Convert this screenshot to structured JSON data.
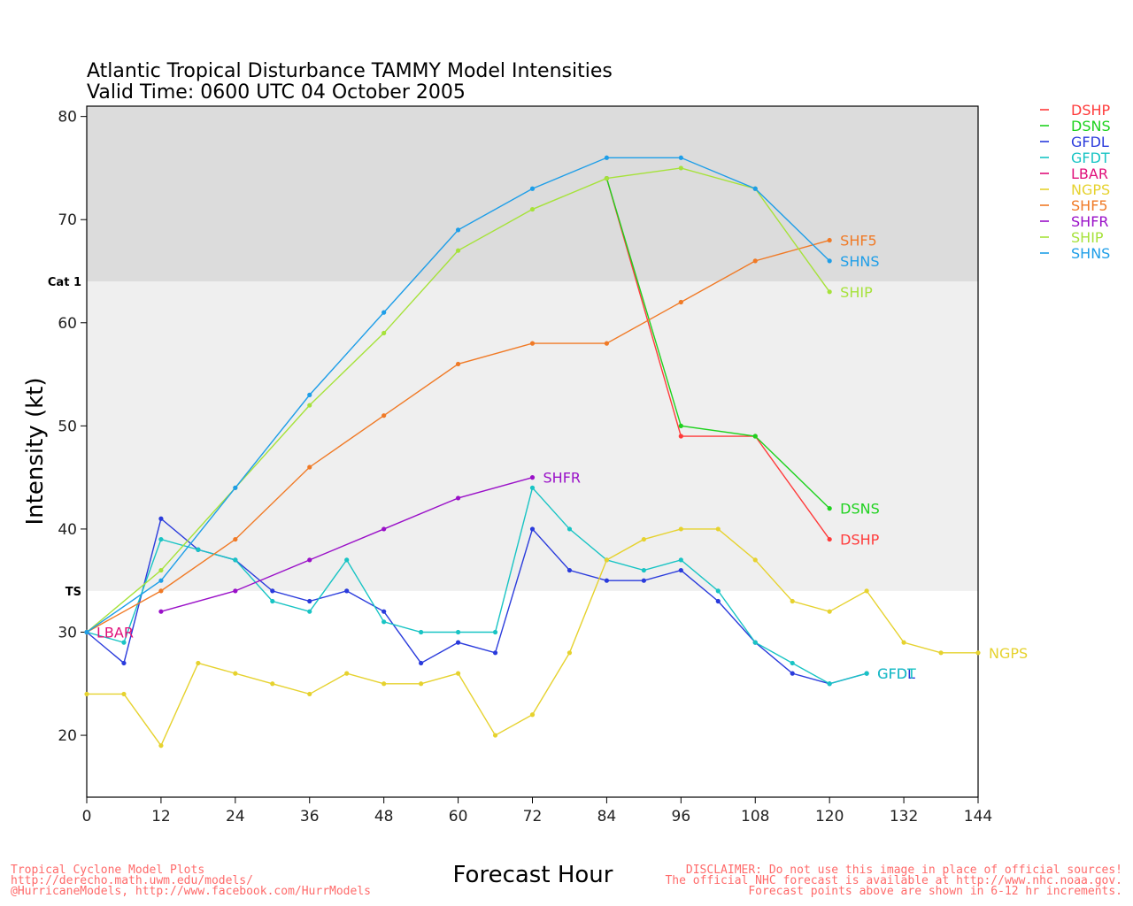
{
  "chart_data": {
    "type": "line",
    "title": "Atlantic Tropical Disturbance TAMMY Model Intensities",
    "subtitle": "Valid Time: 0600 UTC 04 October 2005",
    "xlabel": "Forecast Hour",
    "ylabel": "Intensity (kt)",
    "xlim": [
      0,
      144
    ],
    "ylim": [
      14,
      81
    ],
    "xticks": [
      0,
      12,
      24,
      36,
      48,
      60,
      72,
      84,
      96,
      108,
      120,
      132,
      144
    ],
    "yticks": [
      20,
      30,
      40,
      50,
      60,
      70,
      80
    ],
    "bands": [
      {
        "label": "TS",
        "from": 34,
        "to": 64,
        "color": "#efefef"
      },
      {
        "label": "Cat 1",
        "from": 64,
        "to": 81,
        "color": "#dcdcdc"
      }
    ],
    "legend_position": "top-right outside",
    "series": [
      {
        "name": "DSHP",
        "color": "#ff3b3b",
        "label": "DSHP",
        "x": [
          84,
          96,
          108,
          120
        ],
        "y": [
          74,
          49,
          49,
          39
        ]
      },
      {
        "name": "DSNS",
        "color": "#1ed21e",
        "label": "DSNS",
        "x": [
          84,
          96,
          108,
          120
        ],
        "y": [
          74,
          50,
          49,
          42
        ]
      },
      {
        "name": "GFDL",
        "color": "#2a3bdc",
        "label": "GFDL",
        "x": [
          0,
          6,
          12,
          18,
          24,
          30,
          36,
          42,
          48,
          54,
          60,
          66,
          72,
          78,
          84,
          90,
          96,
          102,
          108,
          114,
          120,
          126
        ],
        "y": [
          30,
          27,
          41,
          38,
          37,
          34,
          33,
          34,
          32,
          27,
          29,
          28,
          40,
          36,
          35,
          35,
          36,
          33,
          29,
          26,
          25,
          26
        ]
      },
      {
        "name": "GFDT",
        "color": "#18c4c4",
        "label": "GFDT",
        "x": [
          0,
          6,
          12,
          18,
          24,
          30,
          36,
          42,
          48,
          54,
          60,
          66,
          72,
          78,
          84,
          90,
          96,
          102,
          108,
          114,
          120,
          126
        ],
        "y": [
          30,
          29,
          39,
          38,
          37,
          33,
          32,
          37,
          31,
          30,
          30,
          30,
          44,
          40,
          37,
          36,
          37,
          34,
          29,
          27,
          25,
          26
        ]
      },
      {
        "name": "LBAR",
        "color": "#e0107a",
        "label": "LBAR",
        "x": [
          0
        ],
        "y": [
          30
        ]
      },
      {
        "name": "NGPS",
        "color": "#e6d22e",
        "label": "NGPS",
        "x": [
          0,
          6,
          12,
          18,
          24,
          30,
          36,
          42,
          48,
          54,
          60,
          66,
          72,
          78,
          84,
          90,
          96,
          102,
          108,
          114,
          120,
          126,
          132,
          138,
          144
        ],
        "y": [
          24,
          24,
          19,
          27,
          26,
          25,
          24,
          26,
          25,
          25,
          26,
          20,
          22,
          28,
          37,
          39,
          40,
          40,
          37,
          33,
          32,
          34,
          29,
          28,
          28
        ]
      },
      {
        "name": "SHF5",
        "color": "#f07a26",
        "label": "SHF5",
        "x": [
          0,
          12,
          24,
          36,
          48,
          60,
          72,
          84,
          96,
          108,
          120
        ],
        "y": [
          30,
          34,
          39,
          46,
          51,
          56,
          58,
          58,
          62,
          66,
          68
        ]
      },
      {
        "name": "SHFR",
        "color": "#9a10c8",
        "label": "SHFR",
        "x": [
          12,
          24,
          36,
          48,
          60,
          72
        ],
        "y": [
          32,
          34,
          37,
          40,
          43,
          45
        ]
      },
      {
        "name": "SHIP",
        "color": "#a6e23a",
        "label": "SHIP",
        "x": [
          0,
          12,
          24,
          36,
          48,
          60,
          72,
          84,
          96,
          108,
          120
        ],
        "y": [
          30,
          36,
          44,
          52,
          59,
          67,
          71,
          74,
          75,
          73,
          63
        ]
      },
      {
        "name": "SHNS",
        "color": "#1e9ee8",
        "label": "SHNS",
        "x": [
          0,
          12,
          24,
          36,
          48,
          60,
          72,
          84,
          96,
          108,
          120
        ],
        "y": [
          30,
          35,
          44,
          53,
          61,
          69,
          73,
          76,
          76,
          73,
          66
        ]
      }
    ]
  },
  "footer": {
    "left": [
      "Tropical Cyclone Model Plots",
      "http://derecho.math.uwm.edu/models/",
      "@HurricaneModels, http://www.facebook.com/HurrModels"
    ],
    "right": [
      "DISCLAIMER: Do not use this image in place of official sources!",
      "The official NHC forecast is available at http://www.nhc.noaa.gov.",
      "Forecast points above are shown in 6-12 hr increments."
    ]
  }
}
